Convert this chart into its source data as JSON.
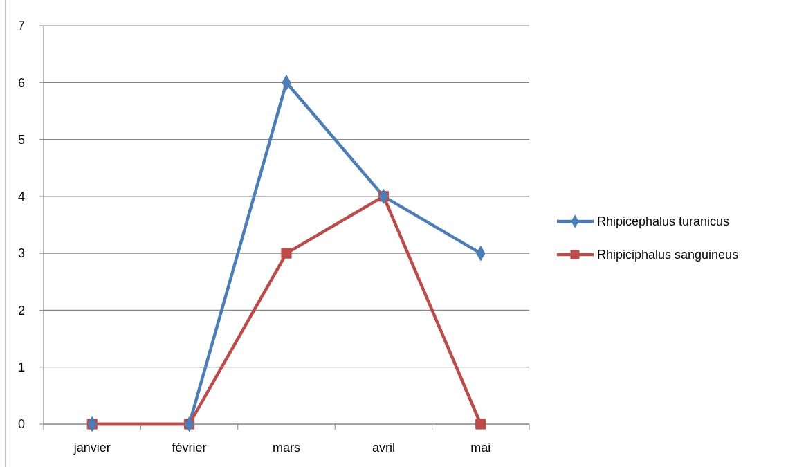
{
  "chart_data": {
    "type": "line",
    "categories": [
      "janvier",
      "février",
      "mars",
      "avril",
      "mai"
    ],
    "series": [
      {
        "name": "Rhipicephalus turanicus",
        "color": "#4a7ebb",
        "values": [
          0,
          0,
          6,
          4,
          3
        ],
        "marker": "diamond"
      },
      {
        "name": "Rhipiciphalus sanguineus",
        "color": "#be4b48",
        "values": [
          0,
          0,
          3,
          4,
          0
        ],
        "marker": "square"
      }
    ],
    "ylim": [
      0,
      7
    ],
    "yticks": [
      0,
      1,
      2,
      3,
      4,
      5,
      6,
      7
    ],
    "grid": "y",
    "legend": "right",
    "line_style": "solid"
  }
}
